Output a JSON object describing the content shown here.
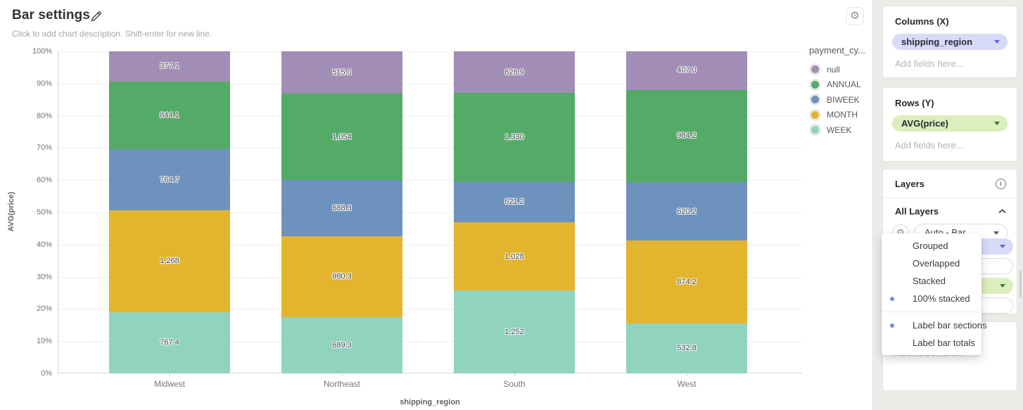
{
  "header": {
    "title": "Bar settings",
    "subtitle": "Click to add chart description. Shift-enter for new line."
  },
  "chart_data": {
    "type": "bar",
    "stacking": "100% stacked",
    "orientation": "vertical",
    "xlabel": "shipping_region",
    "ylabel": "AVG(price)",
    "ylim": [
      0,
      100
    ],
    "y_tick_labels": [
      "0%",
      "10%",
      "20%",
      "30%",
      "40%",
      "50%",
      "60%",
      "70%",
      "80%",
      "90%",
      "100%"
    ],
    "grid": true,
    "categories": [
      "Midwest",
      "Northeast",
      "South",
      "West"
    ],
    "series": [
      {
        "name": "null",
        "color": "#a28db6",
        "values": [
          377.1,
          515.0,
          628.9,
          407.0
        ],
        "labels": [
          "377.1",
          "515.0",
          "628.9",
          "407.0"
        ]
      },
      {
        "name": "ANNUAL",
        "color": "#53ab67",
        "values": [
          844.1,
          1054,
          1330,
          984.2
        ],
        "labels": [
          "844.1",
          "1,054",
          "1,330",
          "984.2"
        ]
      },
      {
        "name": "BIWEEK",
        "color": "#6d92be",
        "values": [
          764.7,
          688.3,
          621.2,
          620.2
        ],
        "labels": [
          "764.7",
          "688.3",
          "621.2",
          "620.2"
        ]
      },
      {
        "name": "MONTH",
        "color": "#e3b52f",
        "values": [
          1268,
          980.3,
          1028,
          874.2
        ],
        "labels": [
          "1,268",
          "980.3",
          "1,028",
          "874.2"
        ]
      },
      {
        "name": "WEEK",
        "color": "#90d4c0",
        "values": [
          767.4,
          689.3,
          1252,
          532.8
        ],
        "labels": [
          "767.4",
          "689.3",
          "1,252",
          "532.8"
        ]
      }
    ],
    "legend": {
      "title": "payment_cy...",
      "position": "right"
    }
  },
  "sidebar": {
    "columns": {
      "title": "Columns (X)",
      "field": "shipping_region",
      "placeholder": "Add fields here..."
    },
    "rows": {
      "title": "Rows (Y)",
      "field": "AVG(price)",
      "placeholder": "Add fields here..."
    },
    "layers": {
      "title": "Layers",
      "all_layers_label": "All Layers",
      "layer_type": "Auto - Bar"
    },
    "extra_placeholder": "Add fields here..."
  },
  "menu": {
    "items": [
      {
        "label": "Grouped",
        "selected": false
      },
      {
        "label": "Overlapped",
        "selected": false
      },
      {
        "label": "Stacked",
        "selected": false
      },
      {
        "label": "100% stacked",
        "selected": true
      }
    ],
    "toggles": [
      {
        "label": "Label bar sections",
        "selected": true
      },
      {
        "label": "Label bar totals",
        "selected": false
      }
    ]
  },
  "colors": {
    "selected_dot": "#7b88ea",
    "column_pill_bg": "#d8dbf8",
    "row_pill_bg": "#dceebb",
    "sidebar_bg": "#ebece7"
  }
}
